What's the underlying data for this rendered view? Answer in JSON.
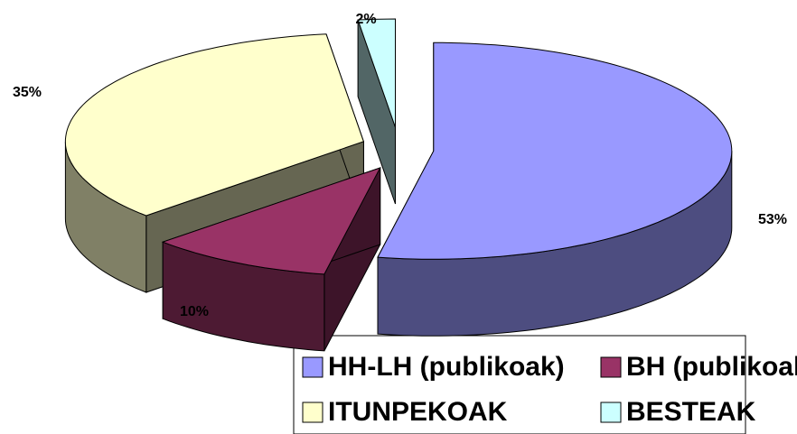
{
  "chart_data": {
    "type": "pie3d",
    "categories": [
      "HH-LH (publikoak)",
      "BH (publikoak)",
      "ITUNPEKOAK",
      "BESTEAK"
    ],
    "values": [
      53,
      10,
      35,
      2
    ],
    "value_labels": [
      "53%",
      "10%",
      "35%",
      "2%"
    ],
    "colors": [
      "#9999ff",
      "#993366",
      "#ffffcc",
      "#ccffff"
    ],
    "legend": "bottom"
  }
}
